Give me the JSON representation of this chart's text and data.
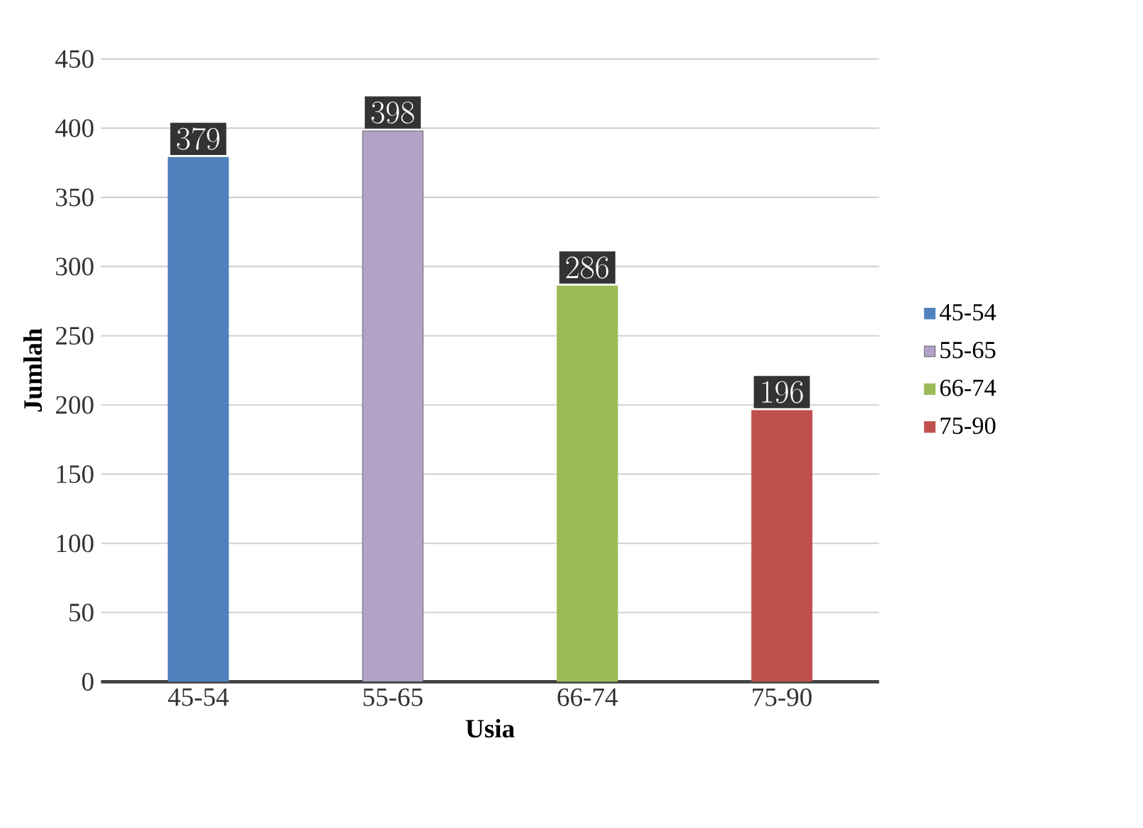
{
  "chart_data": {
    "type": "bar",
    "xlabel": "Usia",
    "ylabel": "Jumlah",
    "categories": [
      "45-54",
      "55-65",
      "66-74",
      "75-90"
    ],
    "series": [
      {
        "name": "45-54",
        "color": "#4f81bd",
        "values": [
          379,
          null,
          null,
          null
        ]
      },
      {
        "name": "55-65",
        "color": "#b3a2c7",
        "values": [
          null,
          398,
          null,
          null
        ]
      },
      {
        "name": "66-74",
        "color": "#9bbb59",
        "values": [
          null,
          null,
          286,
          null
        ]
      },
      {
        "name": "75-90",
        "color": "#c0504d",
        "values": [
          null,
          null,
          null,
          196
        ]
      }
    ],
    "ylim": [
      0,
      450
    ],
    "yticks": [
      0,
      50,
      100,
      150,
      200,
      250,
      300,
      350,
      400,
      450
    ],
    "grid": "y",
    "legend": "right",
    "data_labels": true
  }
}
